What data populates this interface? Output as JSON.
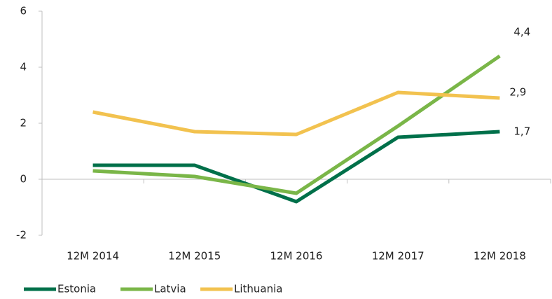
{
  "chart_data": {
    "type": "line",
    "categories": [
      "12M 2014",
      "12M 2015",
      "12M 2016",
      "12M 2017",
      "12M 2018"
    ],
    "series": [
      {
        "name": "Estonia",
        "color": "#00704a",
        "values": [
          0.5,
          0.5,
          -0.8,
          1.5,
          1.7
        ],
        "value_labels": [
          null,
          null,
          null,
          null,
          "1,7"
        ]
      },
      {
        "name": "Latvia",
        "color": "#7ab648",
        "values": [
          0.3,
          0.1,
          -0.5,
          1.9,
          4.4
        ],
        "value_labels": [
          null,
          null,
          null,
          null,
          "4,4"
        ]
      },
      {
        "name": "Lithuania",
        "color": "#f2c24f",
        "values": [
          2.4,
          1.7,
          1.6,
          3.1,
          2.9
        ],
        "value_labels": [
          null,
          null,
          null,
          null,
          "2,9"
        ]
      }
    ],
    "ylim": [
      -2,
      6
    ],
    "yticks": [
      -2,
      0,
      2,
      4,
      6
    ],
    "grid": false,
    "legend": "bottom"
  }
}
